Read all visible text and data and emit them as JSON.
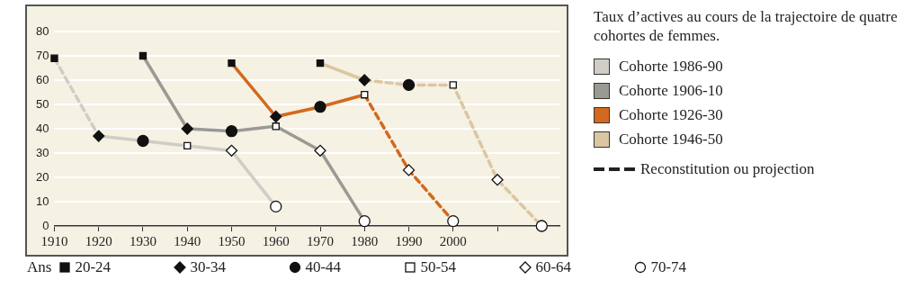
{
  "chart_data": {
    "type": "line",
    "title": "Taux d’actives au cours de la trajectoire de quatre cohortes de femmes.",
    "legend_title": "Ans",
    "xlim": [
      1910,
      2024
    ],
    "xticks": [
      1910,
      1920,
      1930,
      1940,
      1950,
      1960,
      1970,
      1980,
      1990,
      2000,
      {
        "value": 2010,
        "label": null
      },
      {
        "value": 2020,
        "label": null
      }
    ],
    "ylim": [
      0,
      80
    ],
    "yticks": [
      0,
      10,
      20,
      30,
      40,
      50,
      60,
      70,
      80
    ],
    "grid": "y",
    "legend": "right",
    "marker": "none",
    "series": [
      {
        "name": "Cohorte 1986-90",
        "color": "#cfcdc6",
        "line_style": "solid",
        "x": [
          1920,
          1930,
          1940,
          1950,
          1960
        ],
        "values": [
          37,
          35,
          33,
          31,
          8
        ]
      },
      {
        "color": "#cfcdc6",
        "line_style": "dashed",
        "x": [
          1910,
          1920
        ],
        "values": [
          69,
          37
        ]
      },
      {
        "name": "Cohorte 1906-10",
        "color": "#9a9993",
        "line_style": "solid",
        "x": [
          1930,
          1940,
          1950,
          1960,
          1970,
          1980
        ],
        "values": [
          70,
          40,
          39,
          41,
          31,
          2
        ]
      },
      {
        "name": "Cohorte 1926-30",
        "color": "#d2691e",
        "line_style": "solid",
        "x": [
          1950,
          1960,
          1970,
          1980
        ],
        "values": [
          67,
          45,
          49,
          54
        ]
      },
      {
        "color": "#d2691e",
        "line_style": "dashed",
        "x": [
          1980,
          1990,
          2000
        ],
        "values": [
          54,
          23,
          2
        ]
      },
      {
        "name": "Cohorte 1946-50",
        "color": "#dcc6a2",
        "line_style": "solid",
        "x": [
          1970,
          1980
        ],
        "values": [
          67,
          60
        ]
      },
      {
        "color": "#dcc6a2",
        "line_style": "dashed",
        "x": [
          1980,
          1990,
          2000,
          2010,
          2020
        ],
        "values": [
          60,
          58,
          58,
          19,
          0
        ]
      },
      {
        "name": "20-24",
        "type": "scatter",
        "marker": "square",
        "color": "#111111",
        "x": [
          1910,
          1930,
          1950,
          1970
        ],
        "values": [
          69,
          70,
          67,
          67
        ]
      },
      {
        "name": "30-34",
        "type": "scatter",
        "marker": "diamond",
        "color": "#111111",
        "x": [
          1920,
          1940,
          1960,
          1980
        ],
        "values": [
          37,
          40,
          45,
          60
        ]
      },
      {
        "name": "40-44",
        "type": "scatter",
        "marker": "circle",
        "color": "#111111",
        "x": [
          1930,
          1950,
          1970,
          1990
        ],
        "values": [
          35,
          39,
          49,
          58
        ]
      },
      {
        "name": "50-54",
        "type": "scatter",
        "marker": "square",
        "color": "#ffffff",
        "x": [
          1940,
          1960,
          1980,
          2000
        ],
        "values": [
          33,
          41,
          54,
          58
        ]
      },
      {
        "name": "60-64",
        "type": "scatter",
        "marker": "diamond",
        "color": "#ffffff",
        "x": [
          1950,
          1970,
          1990,
          2010
        ],
        "values": [
          31,
          31,
          23,
          19
        ]
      },
      {
        "name": "70-74",
        "type": "scatter",
        "marker": "circle",
        "color": "#ffffff",
        "x": [
          1960,
          1980,
          2000,
          2020
        ],
        "values": [
          8,
          2,
          2,
          0
        ]
      }
    ],
    "annotations": [
      "Reconstitution ou projection"
    ]
  }
}
